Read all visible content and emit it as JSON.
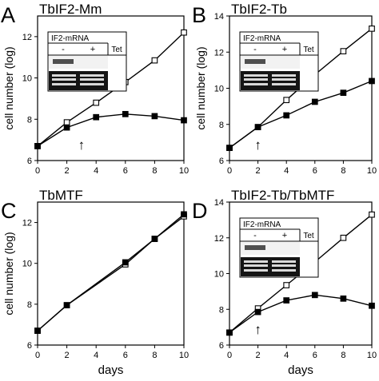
{
  "x_axis_label": "days",
  "y_axis_label": "cell number (log)",
  "inset_text": {
    "title": "IF2-mRNA",
    "minus": "-",
    "plus": "+",
    "tet": "Tet"
  },
  "arrow_glyph": "↑",
  "colors": {
    "line": "#000000",
    "open_fill": "#ffffff",
    "closed_fill": "#000000",
    "background": "#ffffff"
  },
  "chart_data": [
    {
      "type": "line",
      "panel_letter": "A",
      "title": "TbIF2-Mm",
      "xlim": [
        0,
        10
      ],
      "ylim": [
        6,
        13
      ],
      "x_ticks": [
        0,
        2,
        4,
        6,
        8,
        10
      ],
      "y_ticks": [
        6,
        8,
        10,
        12
      ],
      "has_inset": true,
      "arrow_x": 3,
      "series": [
        {
          "marker": "open-square",
          "x": [
            0,
            2,
            4,
            6,
            8,
            10
          ],
          "y": [
            6.7,
            7.85,
            8.8,
            9.8,
            10.85,
            12.2
          ]
        },
        {
          "marker": "filled-square",
          "x": [
            0,
            2,
            4,
            6,
            8,
            10
          ],
          "y": [
            6.7,
            7.6,
            8.1,
            8.25,
            8.15,
            7.95
          ]
        }
      ]
    },
    {
      "type": "line",
      "panel_letter": "B",
      "title": "TbIF2-Tb",
      "xlim": [
        0,
        10
      ],
      "ylim": [
        6,
        14
      ],
      "x_ticks": [
        0,
        2,
        4,
        6,
        8,
        10
      ],
      "y_ticks": [
        6,
        8,
        10,
        12,
        14
      ],
      "has_inset": true,
      "arrow_x": 2,
      "series": [
        {
          "marker": "open-square",
          "x": [
            0,
            2,
            4,
            6,
            8,
            10
          ],
          "y": [
            6.7,
            7.85,
            9.35,
            10.75,
            12.05,
            13.3
          ]
        },
        {
          "marker": "filled-square",
          "x": [
            0,
            2,
            4,
            6,
            8,
            10
          ],
          "y": [
            6.7,
            7.85,
            8.5,
            9.25,
            9.75,
            10.4
          ]
        }
      ]
    },
    {
      "type": "line",
      "panel_letter": "C",
      "title": "TbMTF",
      "xlim": [
        0,
        10
      ],
      "ylim": [
        6,
        13
      ],
      "x_ticks": [
        0,
        2,
        4,
        6,
        8,
        10
      ],
      "y_ticks": [
        6,
        8,
        10,
        12
      ],
      "has_inset": false,
      "arrow_x": null,
      "series": [
        {
          "marker": "open-square",
          "x": [
            0,
            2,
            6,
            8,
            10
          ],
          "y": [
            6.7,
            7.95,
            9.95,
            11.2,
            12.3
          ]
        },
        {
          "marker": "filled-square",
          "x": [
            0,
            2,
            6,
            8,
            10
          ],
          "y": [
            6.7,
            7.95,
            10.05,
            11.2,
            12.4
          ]
        }
      ]
    },
    {
      "type": "line",
      "panel_letter": "D",
      "title": "TbIF2-Tb/TbMTF",
      "xlim": [
        0,
        10
      ],
      "ylim": [
        6,
        14
      ],
      "x_ticks": [
        0,
        2,
        4,
        6,
        8,
        10
      ],
      "y_ticks": [
        6,
        8,
        10,
        12,
        14
      ],
      "has_inset": true,
      "arrow_x": 2,
      "series": [
        {
          "marker": "open-square",
          "x": [
            0,
            2,
            4,
            6,
            8,
            10
          ],
          "y": [
            6.7,
            8.05,
            9.35,
            10.65,
            12.0,
            13.3
          ]
        },
        {
          "marker": "filled-square",
          "x": [
            0,
            2,
            4,
            6,
            8,
            10
          ],
          "y": [
            6.7,
            7.85,
            8.5,
            8.8,
            8.6,
            8.2
          ]
        }
      ]
    }
  ]
}
